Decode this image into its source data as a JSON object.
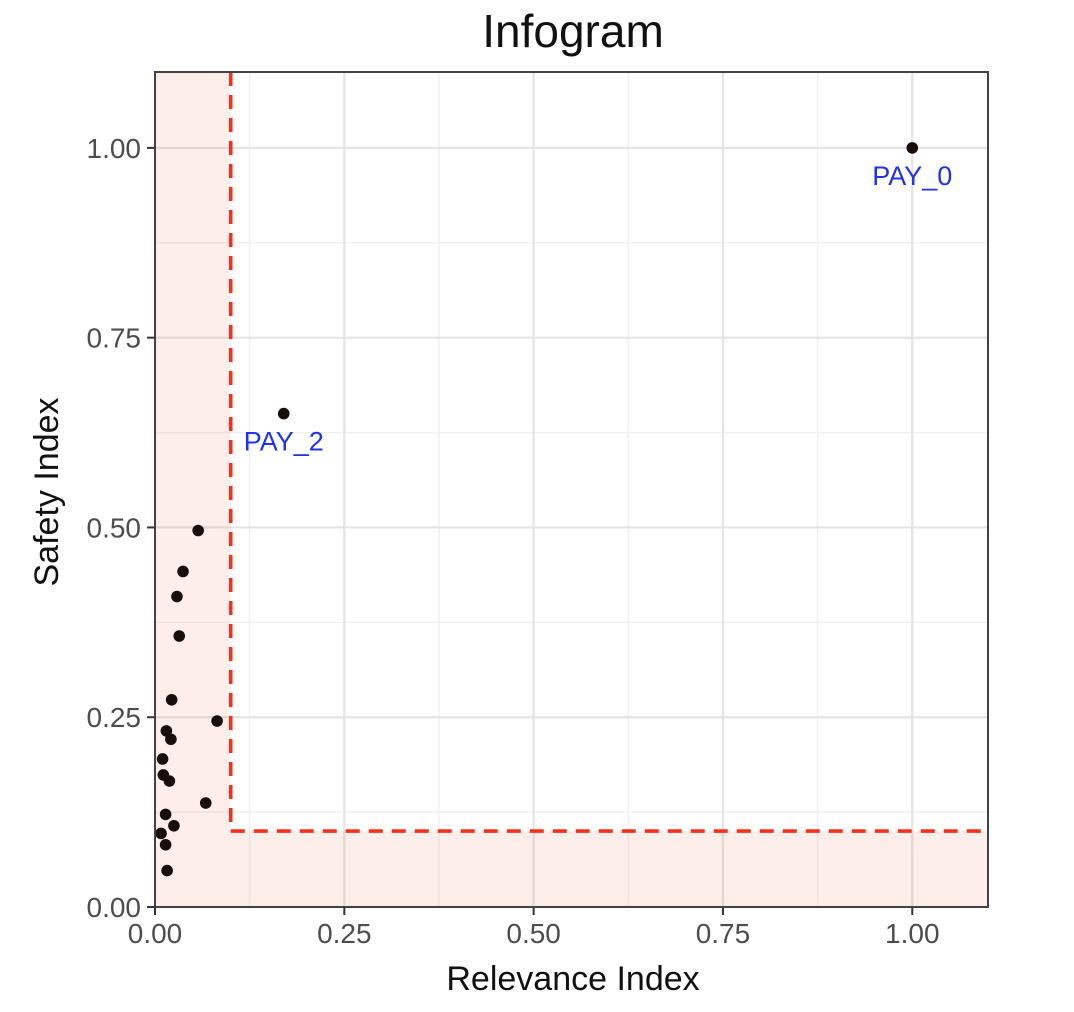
{
  "chart_data": {
    "type": "scatter",
    "title": "Infogram",
    "xlabel": "Relevance Index",
    "ylabel": "Safety Index",
    "x_range": [
      0,
      1.1
    ],
    "y_range": [
      0,
      1.1
    ],
    "grid": true,
    "x_ticks": {
      "values": [
        0,
        0.25,
        0.5,
        0.75,
        1.0
      ],
      "labels": [
        "0.00",
        "0.25",
        "0.50",
        "0.75",
        "1.00"
      ]
    },
    "y_ticks": {
      "values": [
        0,
        0.25,
        0.5,
        0.75,
        1.0
      ],
      "labels": [
        "0.00",
        "0.25",
        "0.50",
        "0.75",
        "1.00"
      ]
    },
    "minor_grid_values": [
      0.125,
      0.375,
      0.625,
      0.875
    ],
    "threshold": {
      "x": 0.1,
      "y": 0.1
    },
    "points": [
      [
        0.057,
        0.496
      ],
      [
        0.037,
        0.442
      ],
      [
        0.029,
        0.409
      ],
      [
        0.032,
        0.357
      ],
      [
        0.022,
        0.273
      ],
      [
        0.082,
        0.245
      ],
      [
        0.015,
        0.232
      ],
      [
        0.021,
        0.221
      ],
      [
        0.01,
        0.195
      ],
      [
        0.011,
        0.174
      ],
      [
        0.019,
        0.166
      ],
      [
        0.067,
        0.137
      ],
      [
        0.014,
        0.122
      ],
      [
        0.025,
        0.107
      ],
      [
        0.008,
        0.097
      ],
      [
        0.014,
        0.082
      ],
      [
        0.016,
        0.048
      ]
    ],
    "labeled_points": [
      {
        "label": "PAY_0",
        "x": 1.0,
        "y": 1.0
      },
      {
        "label": "PAY_2",
        "x": 0.17,
        "y": 0.65
      }
    ],
    "colors": {
      "point": "#180e0a",
      "label": "#2132ea",
      "threshold_line": "#f0321e",
      "shade": "rgba(233,84,48,0.10)",
      "grid_major": "#e4e4e4",
      "grid_minor": "#f0f0f0",
      "panel_border": "#434343",
      "tick": "#333333",
      "tick_text": "#4d4d4d"
    }
  }
}
